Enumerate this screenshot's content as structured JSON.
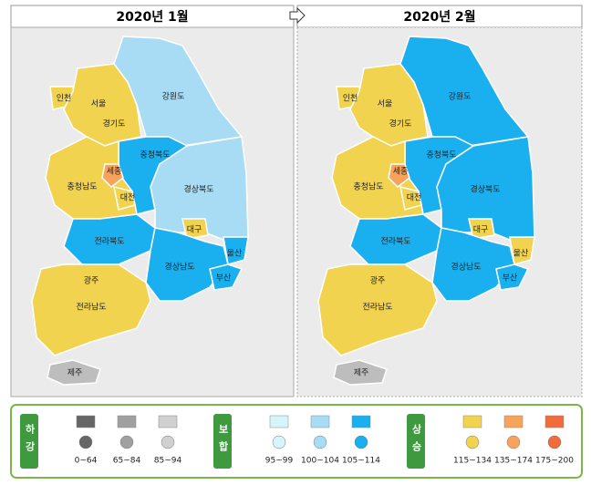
{
  "headers": [
    "2020년 1월",
    "2020년 2월"
  ],
  "maps": [
    {
      "regions": [
        {
          "name": "인천",
          "color": "#f2d34f"
        },
        {
          "name": "서울",
          "color": "#f2d34f"
        },
        {
          "name": "경기도",
          "color": "#f2d34f"
        },
        {
          "name": "강원도",
          "color": "#a8dcf5"
        },
        {
          "name": "충청북도",
          "color": "#1ab0ef"
        },
        {
          "name": "충청남도",
          "color": "#f2d34f"
        },
        {
          "name": "세종",
          "color": "#f7a35c"
        },
        {
          "name": "대전",
          "color": "#f2d34f"
        },
        {
          "name": "경상북도",
          "color": "#a8dcf5"
        },
        {
          "name": "대구",
          "color": "#f2d34f"
        },
        {
          "name": "전라북도",
          "color": "#1ab0ef"
        },
        {
          "name": "울산",
          "color": "#1ab0ef"
        },
        {
          "name": "경상남도",
          "color": "#1ab0ef"
        },
        {
          "name": "부산",
          "color": "#1ab0ef"
        },
        {
          "name": "광주",
          "color": "#1ab0ef"
        },
        {
          "name": "전라남도",
          "color": "#f2d34f"
        },
        {
          "name": "제주",
          "color": "#bdbdbd"
        }
      ]
    },
    {
      "regions": [
        {
          "name": "인천",
          "color": "#f2d34f"
        },
        {
          "name": "서울",
          "color": "#f2d34f"
        },
        {
          "name": "경기도",
          "color": "#f2d34f"
        },
        {
          "name": "강원도",
          "color": "#1ab0ef"
        },
        {
          "name": "충청북도",
          "color": "#1ab0ef"
        },
        {
          "name": "충청남도",
          "color": "#f2d34f"
        },
        {
          "name": "세종",
          "color": "#f7a35c"
        },
        {
          "name": "대전",
          "color": "#f2d34f"
        },
        {
          "name": "경상북도",
          "color": "#1ab0ef"
        },
        {
          "name": "대구",
          "color": "#f2d34f"
        },
        {
          "name": "전라북도",
          "color": "#1ab0ef"
        },
        {
          "name": "울산",
          "color": "#f2d34f"
        },
        {
          "name": "경상남도",
          "color": "#1ab0ef"
        },
        {
          "name": "부산",
          "color": "#1ab0ef"
        },
        {
          "name": "광주",
          "color": "#1ab0ef"
        },
        {
          "name": "전라남도",
          "color": "#f2d34f"
        },
        {
          "name": "제주",
          "color": "#bdbdbd"
        }
      ]
    }
  ],
  "legend": [
    {
      "group": "하강",
      "items": [
        {
          "label": "0~64",
          "color": "#666666"
        },
        {
          "label": "65~84",
          "color": "#a0a0a0"
        },
        {
          "label": "85~94",
          "color": "#d0d0d0"
        }
      ]
    },
    {
      "group": "보합",
      "items": [
        {
          "label": "95~99",
          "color": "#d6f5fb"
        },
        {
          "label": "100~104",
          "color": "#a8dcf5"
        },
        {
          "label": "105~114",
          "color": "#1ab0ef"
        }
      ]
    },
    {
      "group": "상승",
      "items": [
        {
          "label": "115~134",
          "color": "#f2d34f"
        },
        {
          "label": "135~174",
          "color": "#f7a35c"
        },
        {
          "label": "175~200",
          "color": "#f26b3a"
        }
      ]
    }
  ]
}
